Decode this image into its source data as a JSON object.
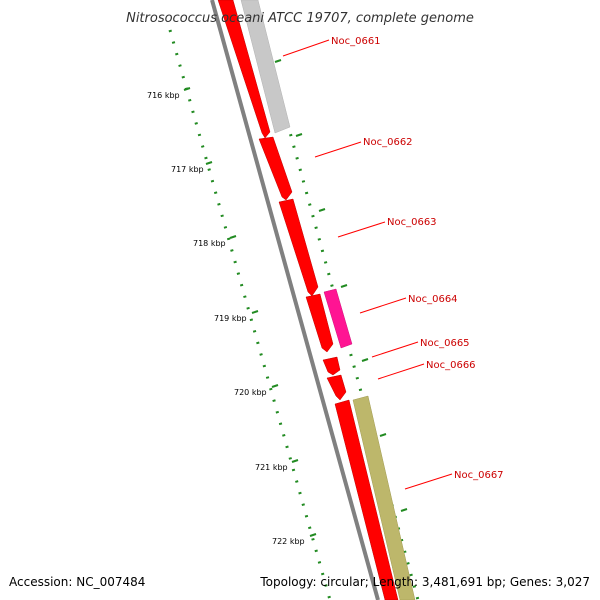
{
  "title": "Nitrosococcus oceani ATCC 19707, complete genome",
  "accession": "Accession: NC_007484",
  "topology": "Topology: circular; Length: 3,481,691 bp; Genes: 3,027",
  "colors": {
    "backbone": "#808080",
    "cds": "#ff0000",
    "pink": "#ff1493",
    "grey": "#c8c8c8",
    "khaki": "#bdb76b",
    "tick_dots": "#228b22",
    "label": "#cc0000"
  },
  "scale_ticks": [
    {
      "label": "716 kbp"
    },
    {
      "label": "717 kbp"
    },
    {
      "label": "718 kbp"
    },
    {
      "label": "719 kbp"
    },
    {
      "label": "720 kbp"
    },
    {
      "label": "721 kbp"
    },
    {
      "label": "722 kbp"
    }
  ],
  "genes": [
    {
      "label": "Noc_0661"
    },
    {
      "label": "Noc_0662"
    },
    {
      "label": "Noc_0663"
    },
    {
      "label": "Noc_0664"
    },
    {
      "label": "Noc_0665"
    },
    {
      "label": "Noc_0666"
    },
    {
      "label": "Noc_0667"
    }
  ]
}
